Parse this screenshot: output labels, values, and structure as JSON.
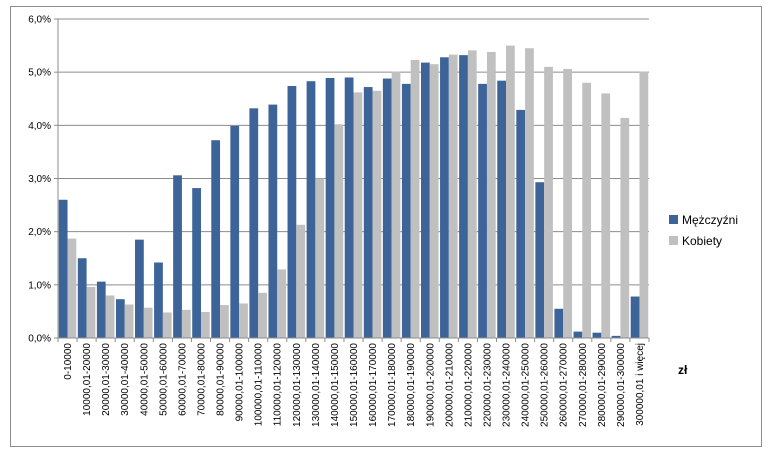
{
  "chart_data": {
    "type": "bar",
    "categories": [
      "0-10000",
      "10000,01-20000",
      "20000,01-30000",
      "30000,01-40000",
      "40000,01-50000",
      "50000,01-60000",
      "60000,01-70000",
      "70000,01-80000",
      "80000,01-90000",
      "90000,01-100000",
      "100000,01-110000",
      "110000,01-120000",
      "120000,01-130000",
      "130000,01-140000",
      "140000,01-150000",
      "150000,01-160000",
      "160000,01-170000",
      "170000,01-180000",
      "180000,01-190000",
      "190000,01-200000",
      "200000,01-210000",
      "210000,01-220000",
      "220000,01-230000",
      "230000,01-240000",
      "240000,01-250000",
      "250000,01-260000",
      "260000,01-270000",
      "270000,01-280000",
      "280000,01-290000",
      "290000,01-300000",
      "300000,01 i więcej"
    ],
    "series": [
      {
        "name": "Mężczyźni",
        "color": "#3c6499",
        "values": [
          2.6,
          1.5,
          1.06,
          0.73,
          1.85,
          1.42,
          3.06,
          2.82,
          3.72,
          3.99,
          4.32,
          4.39,
          4.74,
          4.83,
          4.89,
          4.9,
          4.72,
          4.88,
          4.78,
          5.18,
          5.28,
          5.32,
          4.78,
          4.84,
          4.29,
          2.93,
          0.55,
          0.12,
          0.1,
          0.04,
          0.78
        ]
      },
      {
        "name": "Kobiety",
        "color": "#c0c0c0",
        "values": [
          1.87,
          0.96,
          0.8,
          0.63,
          0.57,
          0.48,
          0.53,
          0.49,
          0.62,
          0.65,
          0.85,
          1.29,
          2.13,
          3.0,
          4.02,
          4.62,
          4.65,
          5.01,
          5.23,
          5.15,
          5.33,
          5.41,
          5.38,
          5.5,
          5.45,
          5.1,
          5.06,
          4.8,
          4.6,
          4.14,
          5.01
        ]
      }
    ],
    "ylim": [
      0,
      6
    ],
    "y_ticks": [
      "0,0%",
      "1,0%",
      "2,0%",
      "3,0%",
      "4,0%",
      "5,0%",
      "6,0%"
    ],
    "grid": true,
    "legend_position": "right",
    "xlabel": "zł"
  }
}
